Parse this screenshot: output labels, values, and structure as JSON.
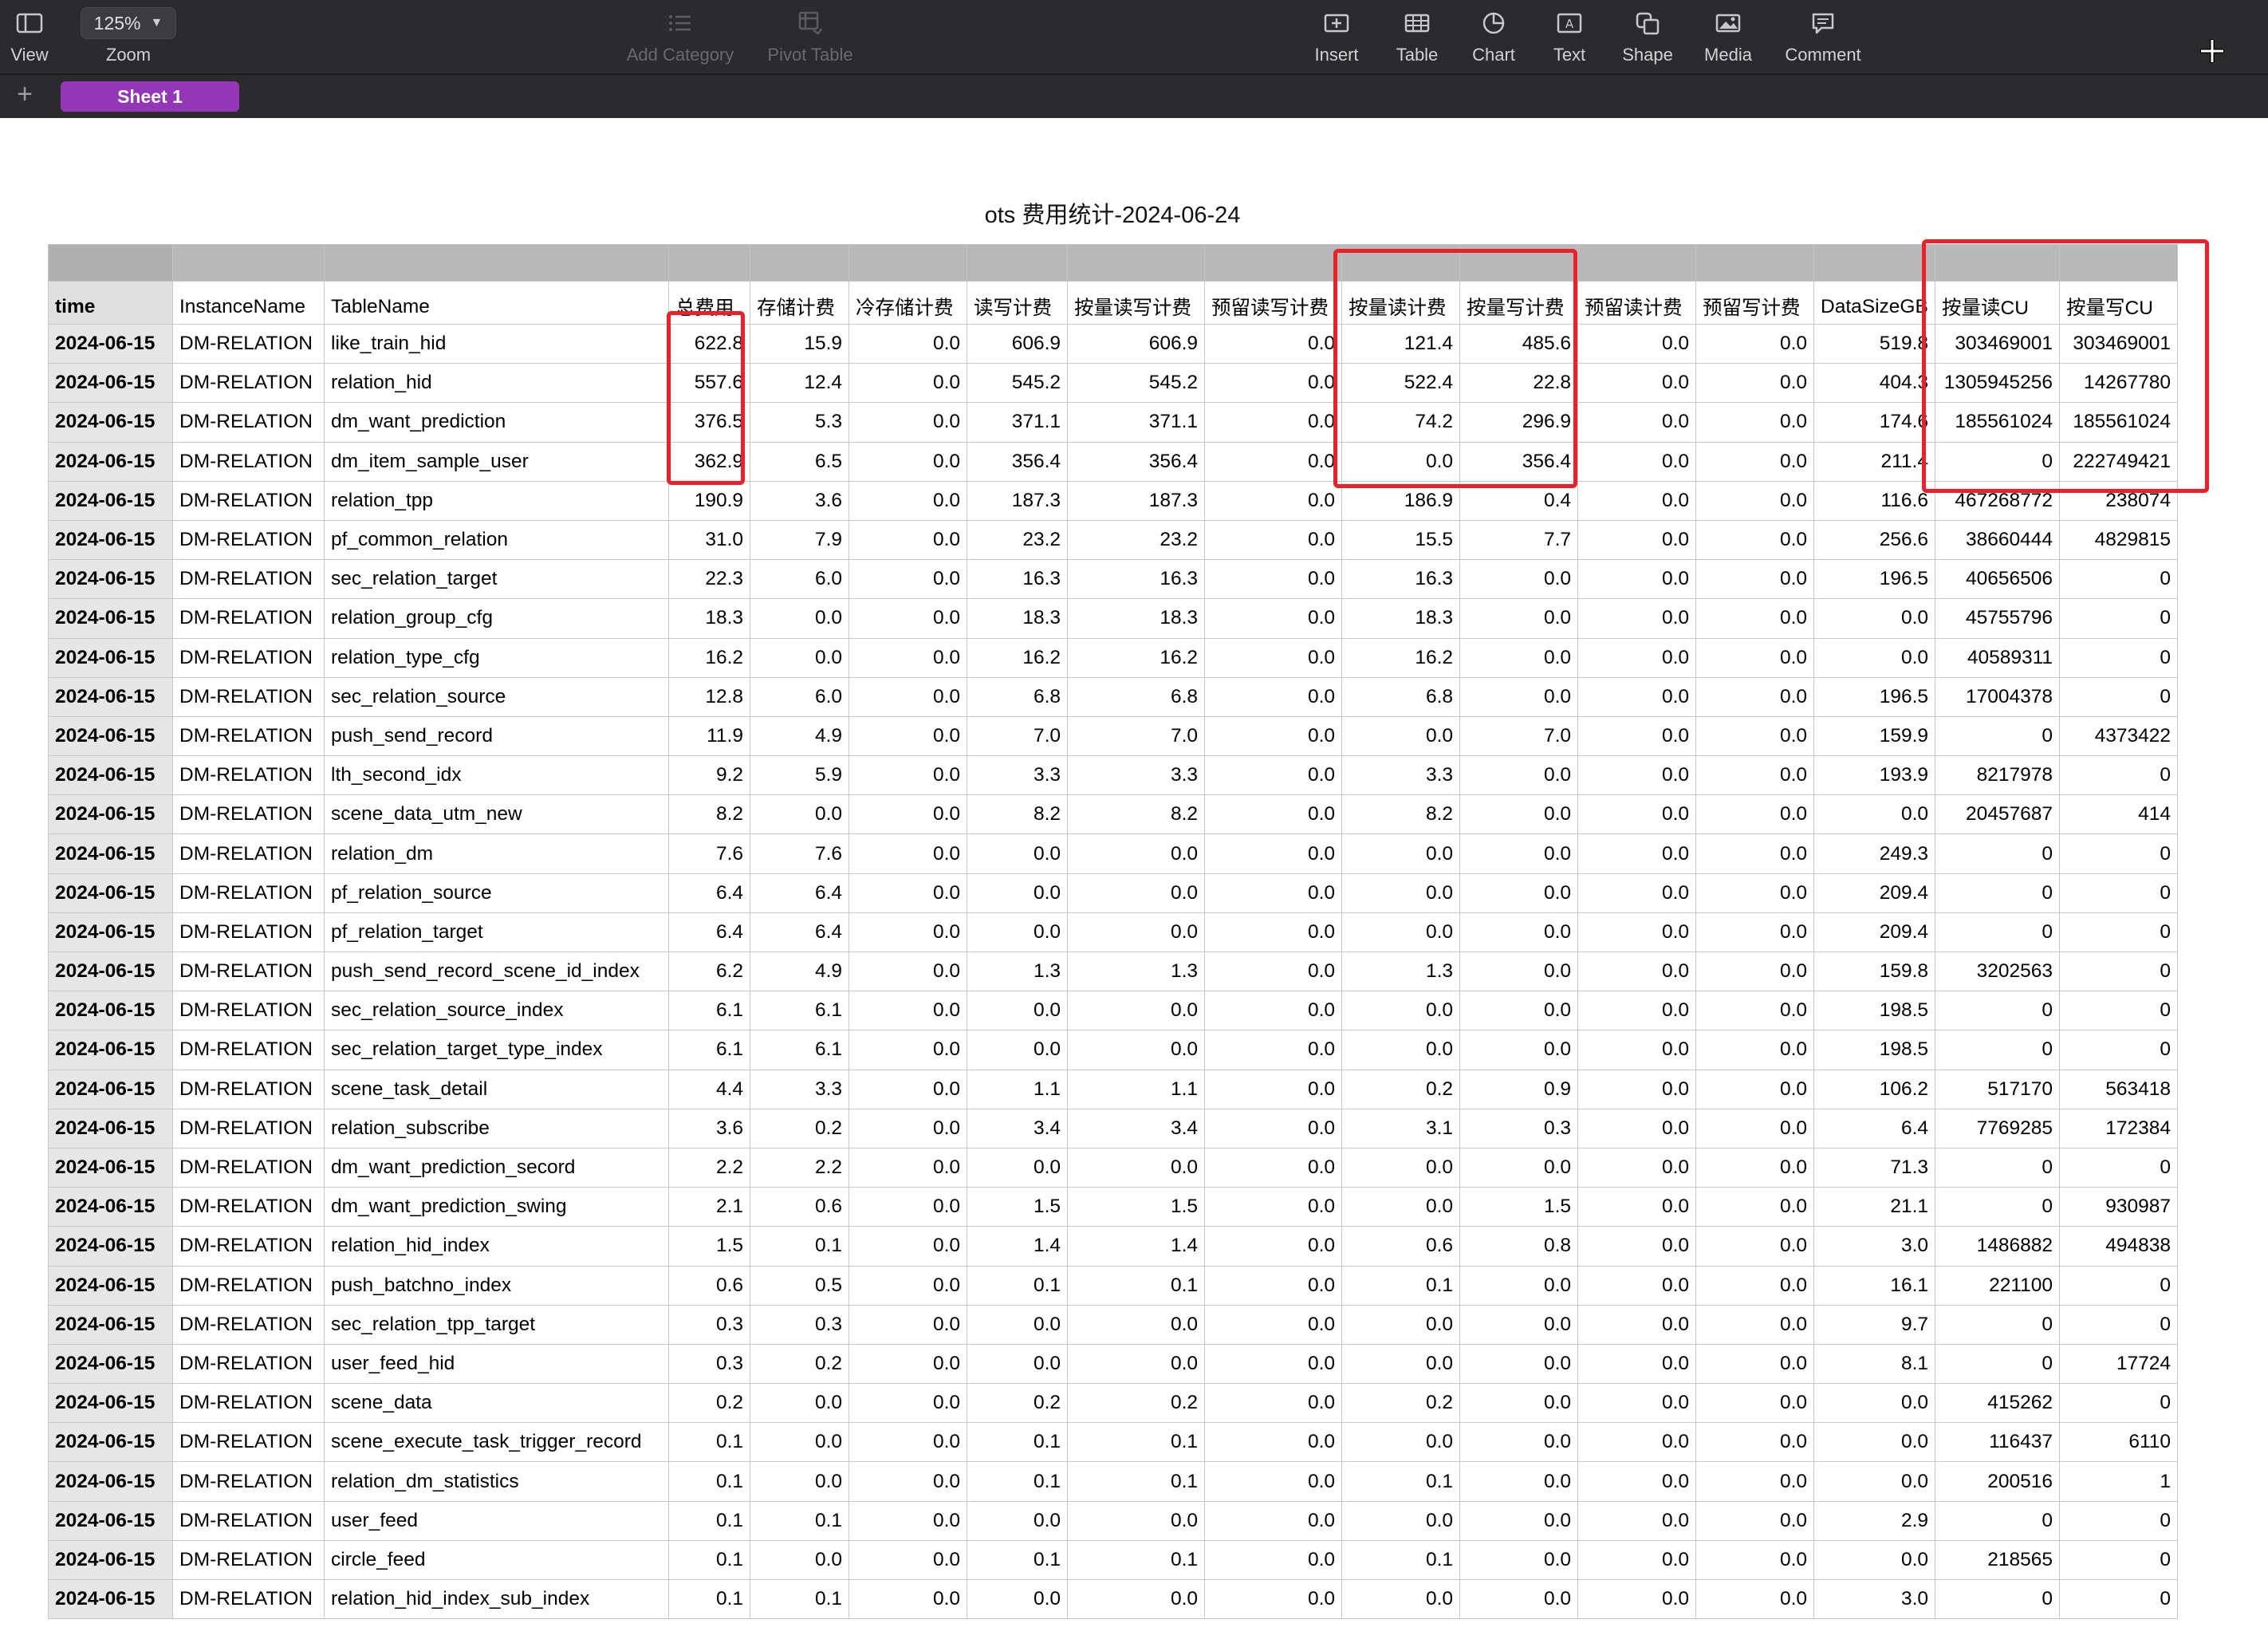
{
  "toolbar": {
    "view_label": "View",
    "zoom_value": "125%",
    "zoom_label": "Zoom",
    "add_category_label": "Add Category",
    "pivot_table_label": "Pivot Table",
    "insert_label": "Insert",
    "table_label": "Table",
    "chart_label": "Chart",
    "text_label": "Text",
    "shape_label": "Shape",
    "media_label": "Media",
    "comment_label": "Comment",
    "icons": [
      "sidebar-view-icon",
      "chevron-down-icon",
      "add-category-icon",
      "pivot-table-icon",
      "insert-icon",
      "table-icon",
      "chart-icon",
      "text-icon",
      "shape-icon",
      "media-icon",
      "comment-icon",
      "pointer-crosshair-icon"
    ]
  },
  "sheets": {
    "add_label": "+",
    "active_tab": "Sheet 1",
    "accent_color": "#9337b6"
  },
  "sheet_title": "ots 费用统计-2024-06-24",
  "highlight_color": "#e8212b",
  "table": {
    "columns": [
      "time",
      "InstanceName",
      "TableName",
      "总费用",
      "存储计费",
      "冷存储计费",
      "读写计费",
      "按量读写计费",
      "预留读写计费",
      "按量读计费",
      "按量写计费",
      "预留读计费",
      "预留写计费",
      "DataSizeGB",
      "按量读CU",
      "按量写CU"
    ],
    "rows": [
      [
        "2024-06-15",
        "DM-RELATION",
        "like_train_hid",
        "622.8",
        "15.9",
        "0.0",
        "606.9",
        "606.9",
        "0.0",
        "121.4",
        "485.6",
        "0.0",
        "0.0",
        "519.8",
        "303469001",
        "303469001"
      ],
      [
        "2024-06-15",
        "DM-RELATION",
        "relation_hid",
        "557.6",
        "12.4",
        "0.0",
        "545.2",
        "545.2",
        "0.0",
        "522.4",
        "22.8",
        "0.0",
        "0.0",
        "404.3",
        "1305945256",
        "14267780"
      ],
      [
        "2024-06-15",
        "DM-RELATION",
        "dm_want_prediction",
        "376.5",
        "5.3",
        "0.0",
        "371.1",
        "371.1",
        "0.0",
        "74.2",
        "296.9",
        "0.0",
        "0.0",
        "174.6",
        "185561024",
        "185561024"
      ],
      [
        "2024-06-15",
        "DM-RELATION",
        "dm_item_sample_user",
        "362.9",
        "6.5",
        "0.0",
        "356.4",
        "356.4",
        "0.0",
        "0.0",
        "356.4",
        "0.0",
        "0.0",
        "211.4",
        "0",
        "222749421"
      ],
      [
        "2024-06-15",
        "DM-RELATION",
        "relation_tpp",
        "190.9",
        "3.6",
        "0.0",
        "187.3",
        "187.3",
        "0.0",
        "186.9",
        "0.4",
        "0.0",
        "0.0",
        "116.6",
        "467268772",
        "238074"
      ],
      [
        "2024-06-15",
        "DM-RELATION",
        "pf_common_relation",
        "31.0",
        "7.9",
        "0.0",
        "23.2",
        "23.2",
        "0.0",
        "15.5",
        "7.7",
        "0.0",
        "0.0",
        "256.6",
        "38660444",
        "4829815"
      ],
      [
        "2024-06-15",
        "DM-RELATION",
        "sec_relation_target",
        "22.3",
        "6.0",
        "0.0",
        "16.3",
        "16.3",
        "0.0",
        "16.3",
        "0.0",
        "0.0",
        "0.0",
        "196.5",
        "40656506",
        "0"
      ],
      [
        "2024-06-15",
        "DM-RELATION",
        "relation_group_cfg",
        "18.3",
        "0.0",
        "0.0",
        "18.3",
        "18.3",
        "0.0",
        "18.3",
        "0.0",
        "0.0",
        "0.0",
        "0.0",
        "45755796",
        "0"
      ],
      [
        "2024-06-15",
        "DM-RELATION",
        "relation_type_cfg",
        "16.2",
        "0.0",
        "0.0",
        "16.2",
        "16.2",
        "0.0",
        "16.2",
        "0.0",
        "0.0",
        "0.0",
        "0.0",
        "40589311",
        "0"
      ],
      [
        "2024-06-15",
        "DM-RELATION",
        "sec_relation_source",
        "12.8",
        "6.0",
        "0.0",
        "6.8",
        "6.8",
        "0.0",
        "6.8",
        "0.0",
        "0.0",
        "0.0",
        "196.5",
        "17004378",
        "0"
      ],
      [
        "2024-06-15",
        "DM-RELATION",
        "push_send_record",
        "11.9",
        "4.9",
        "0.0",
        "7.0",
        "7.0",
        "0.0",
        "0.0",
        "7.0",
        "0.0",
        "0.0",
        "159.9",
        "0",
        "4373422"
      ],
      [
        "2024-06-15",
        "DM-RELATION",
        "lth_second_idx",
        "9.2",
        "5.9",
        "0.0",
        "3.3",
        "3.3",
        "0.0",
        "3.3",
        "0.0",
        "0.0",
        "0.0",
        "193.9",
        "8217978",
        "0"
      ],
      [
        "2024-06-15",
        "DM-RELATION",
        "scene_data_utm_new",
        "8.2",
        "0.0",
        "0.0",
        "8.2",
        "8.2",
        "0.0",
        "8.2",
        "0.0",
        "0.0",
        "0.0",
        "0.0",
        "20457687",
        "414"
      ],
      [
        "2024-06-15",
        "DM-RELATION",
        "relation_dm",
        "7.6",
        "7.6",
        "0.0",
        "0.0",
        "0.0",
        "0.0",
        "0.0",
        "0.0",
        "0.0",
        "0.0",
        "249.3",
        "0",
        "0"
      ],
      [
        "2024-06-15",
        "DM-RELATION",
        "pf_relation_source",
        "6.4",
        "6.4",
        "0.0",
        "0.0",
        "0.0",
        "0.0",
        "0.0",
        "0.0",
        "0.0",
        "0.0",
        "209.4",
        "0",
        "0"
      ],
      [
        "2024-06-15",
        "DM-RELATION",
        "pf_relation_target",
        "6.4",
        "6.4",
        "0.0",
        "0.0",
        "0.0",
        "0.0",
        "0.0",
        "0.0",
        "0.0",
        "0.0",
        "209.4",
        "0",
        "0"
      ],
      [
        "2024-06-15",
        "DM-RELATION",
        "push_send_record_scene_id_index",
        "6.2",
        "4.9",
        "0.0",
        "1.3",
        "1.3",
        "0.0",
        "1.3",
        "0.0",
        "0.0",
        "0.0",
        "159.8",
        "3202563",
        "0"
      ],
      [
        "2024-06-15",
        "DM-RELATION",
        "sec_relation_source_index",
        "6.1",
        "6.1",
        "0.0",
        "0.0",
        "0.0",
        "0.0",
        "0.0",
        "0.0",
        "0.0",
        "0.0",
        "198.5",
        "0",
        "0"
      ],
      [
        "2024-06-15",
        "DM-RELATION",
        "sec_relation_target_type_index",
        "6.1",
        "6.1",
        "0.0",
        "0.0",
        "0.0",
        "0.0",
        "0.0",
        "0.0",
        "0.0",
        "0.0",
        "198.5",
        "0",
        "0"
      ],
      [
        "2024-06-15",
        "DM-RELATION",
        "scene_task_detail",
        "4.4",
        "3.3",
        "0.0",
        "1.1",
        "1.1",
        "0.0",
        "0.2",
        "0.9",
        "0.0",
        "0.0",
        "106.2",
        "517170",
        "563418"
      ],
      [
        "2024-06-15",
        "DM-RELATION",
        "relation_subscribe",
        "3.6",
        "0.2",
        "0.0",
        "3.4",
        "3.4",
        "0.0",
        "3.1",
        "0.3",
        "0.0",
        "0.0",
        "6.4",
        "7769285",
        "172384"
      ],
      [
        "2024-06-15",
        "DM-RELATION",
        "dm_want_prediction_secord",
        "2.2",
        "2.2",
        "0.0",
        "0.0",
        "0.0",
        "0.0",
        "0.0",
        "0.0",
        "0.0",
        "0.0",
        "71.3",
        "0",
        "0"
      ],
      [
        "2024-06-15",
        "DM-RELATION",
        "dm_want_prediction_swing",
        "2.1",
        "0.6",
        "0.0",
        "1.5",
        "1.5",
        "0.0",
        "0.0",
        "1.5",
        "0.0",
        "0.0",
        "21.1",
        "0",
        "930987"
      ],
      [
        "2024-06-15",
        "DM-RELATION",
        "relation_hid_index",
        "1.5",
        "0.1",
        "0.0",
        "1.4",
        "1.4",
        "0.0",
        "0.6",
        "0.8",
        "0.0",
        "0.0",
        "3.0",
        "1486882",
        "494838"
      ],
      [
        "2024-06-15",
        "DM-RELATION",
        "push_batchno_index",
        "0.6",
        "0.5",
        "0.0",
        "0.1",
        "0.1",
        "0.0",
        "0.1",
        "0.0",
        "0.0",
        "0.0",
        "16.1",
        "221100",
        "0"
      ],
      [
        "2024-06-15",
        "DM-RELATION",
        "sec_relation_tpp_target",
        "0.3",
        "0.3",
        "0.0",
        "0.0",
        "0.0",
        "0.0",
        "0.0",
        "0.0",
        "0.0",
        "0.0",
        "9.7",
        "0",
        "0"
      ],
      [
        "2024-06-15",
        "DM-RELATION",
        "user_feed_hid",
        "0.3",
        "0.2",
        "0.0",
        "0.0",
        "0.0",
        "0.0",
        "0.0",
        "0.0",
        "0.0",
        "0.0",
        "8.1",
        "0",
        "17724"
      ],
      [
        "2024-06-15",
        "DM-RELATION",
        "scene_data",
        "0.2",
        "0.0",
        "0.0",
        "0.2",
        "0.2",
        "0.0",
        "0.2",
        "0.0",
        "0.0",
        "0.0",
        "0.0",
        "415262",
        "0"
      ],
      [
        "2024-06-15",
        "DM-RELATION",
        "scene_execute_task_trigger_record",
        "0.1",
        "0.0",
        "0.0",
        "0.1",
        "0.1",
        "0.0",
        "0.0",
        "0.0",
        "0.0",
        "0.0",
        "0.0",
        "116437",
        "6110"
      ],
      [
        "2024-06-15",
        "DM-RELATION",
        "relation_dm_statistics",
        "0.1",
        "0.0",
        "0.0",
        "0.1",
        "0.1",
        "0.0",
        "0.1",
        "0.0",
        "0.0",
        "0.0",
        "0.0",
        "200516",
        "1"
      ],
      [
        "2024-06-15",
        "DM-RELATION",
        "user_feed",
        "0.1",
        "0.1",
        "0.0",
        "0.0",
        "0.0",
        "0.0",
        "0.0",
        "0.0",
        "0.0",
        "0.0",
        "2.9",
        "0",
        "0"
      ],
      [
        "2024-06-15",
        "DM-RELATION",
        "circle_feed",
        "0.1",
        "0.0",
        "0.0",
        "0.1",
        "0.1",
        "0.0",
        "0.1",
        "0.0",
        "0.0",
        "0.0",
        "0.0",
        "218565",
        "0"
      ],
      [
        "2024-06-15",
        "DM-RELATION",
        "relation_hid_index_sub_index",
        "0.1",
        "0.1",
        "0.0",
        "0.0",
        "0.0",
        "0.0",
        "0.0",
        "0.0",
        "0.0",
        "0.0",
        "3.0",
        "0",
        "0"
      ]
    ]
  }
}
